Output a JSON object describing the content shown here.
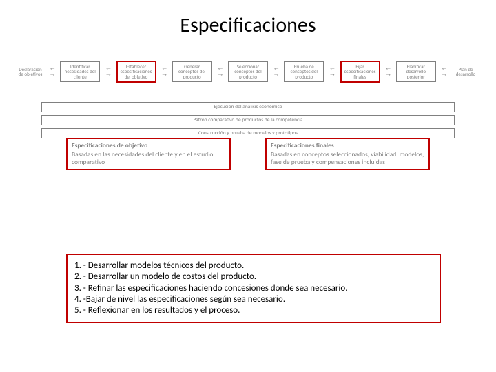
{
  "title": "Especificaciones",
  "colors": {
    "accent": "#c00000",
    "muted_text": "#808080",
    "muted_border": "#808080",
    "bg": "#ffffff"
  },
  "typography": {
    "title_fontsize": 30,
    "flow_fontsize": 7,
    "bar_fontsize": 7.5,
    "spec_fontsize": 9.5,
    "steps_fontsize": 13
  },
  "flow": {
    "start_label": "Declaración de objetivos",
    "end_label": "Plan de desarrollo",
    "boxes": [
      {
        "label": "Identificar necesidades del cliente",
        "highlighted": false
      },
      {
        "label": "Establecer especificaciones del objetivo",
        "highlighted": true
      },
      {
        "label": "Generar conceptos del producto",
        "highlighted": false
      },
      {
        "label": "Seleccionar conceptos del producto",
        "highlighted": false
      },
      {
        "label": "Prueba de conceptos del producto",
        "highlighted": false
      },
      {
        "label": "Fijar especificaciones finales",
        "highlighted": true
      },
      {
        "label": "Planificar desarrollo posterior",
        "highlighted": false
      }
    ],
    "arrow_above": "←",
    "arrow_below": "→"
  },
  "hbars": [
    "Ejecución del análisis económico",
    "Patrón comparativo de productos de la competencia",
    "Construcción y prueba de modelos y prototipos"
  ],
  "spec_left": {
    "header": "Especificaciones de objetivo",
    "body": "Basadas en las necesidades del cliente y en el estudio comparativo"
  },
  "spec_right": {
    "header": "Especificaciones finales",
    "body": "Basadas en conceptos seleccionados, viabilidad, modelos, fase de prueba y compensaciones incluidas"
  },
  "steps": [
    "1. - Desarrollar modelos técnicos del producto.",
    "2. - Desarrollar un modelo de costos del producto.",
    "3. - Refinar las especificaciones haciendo concesiones donde sea necesario.",
    "4. -Bajar de nivel las especificaciones según sea necesario.",
    "5. - Reflexionar en los resultados y el proceso."
  ]
}
